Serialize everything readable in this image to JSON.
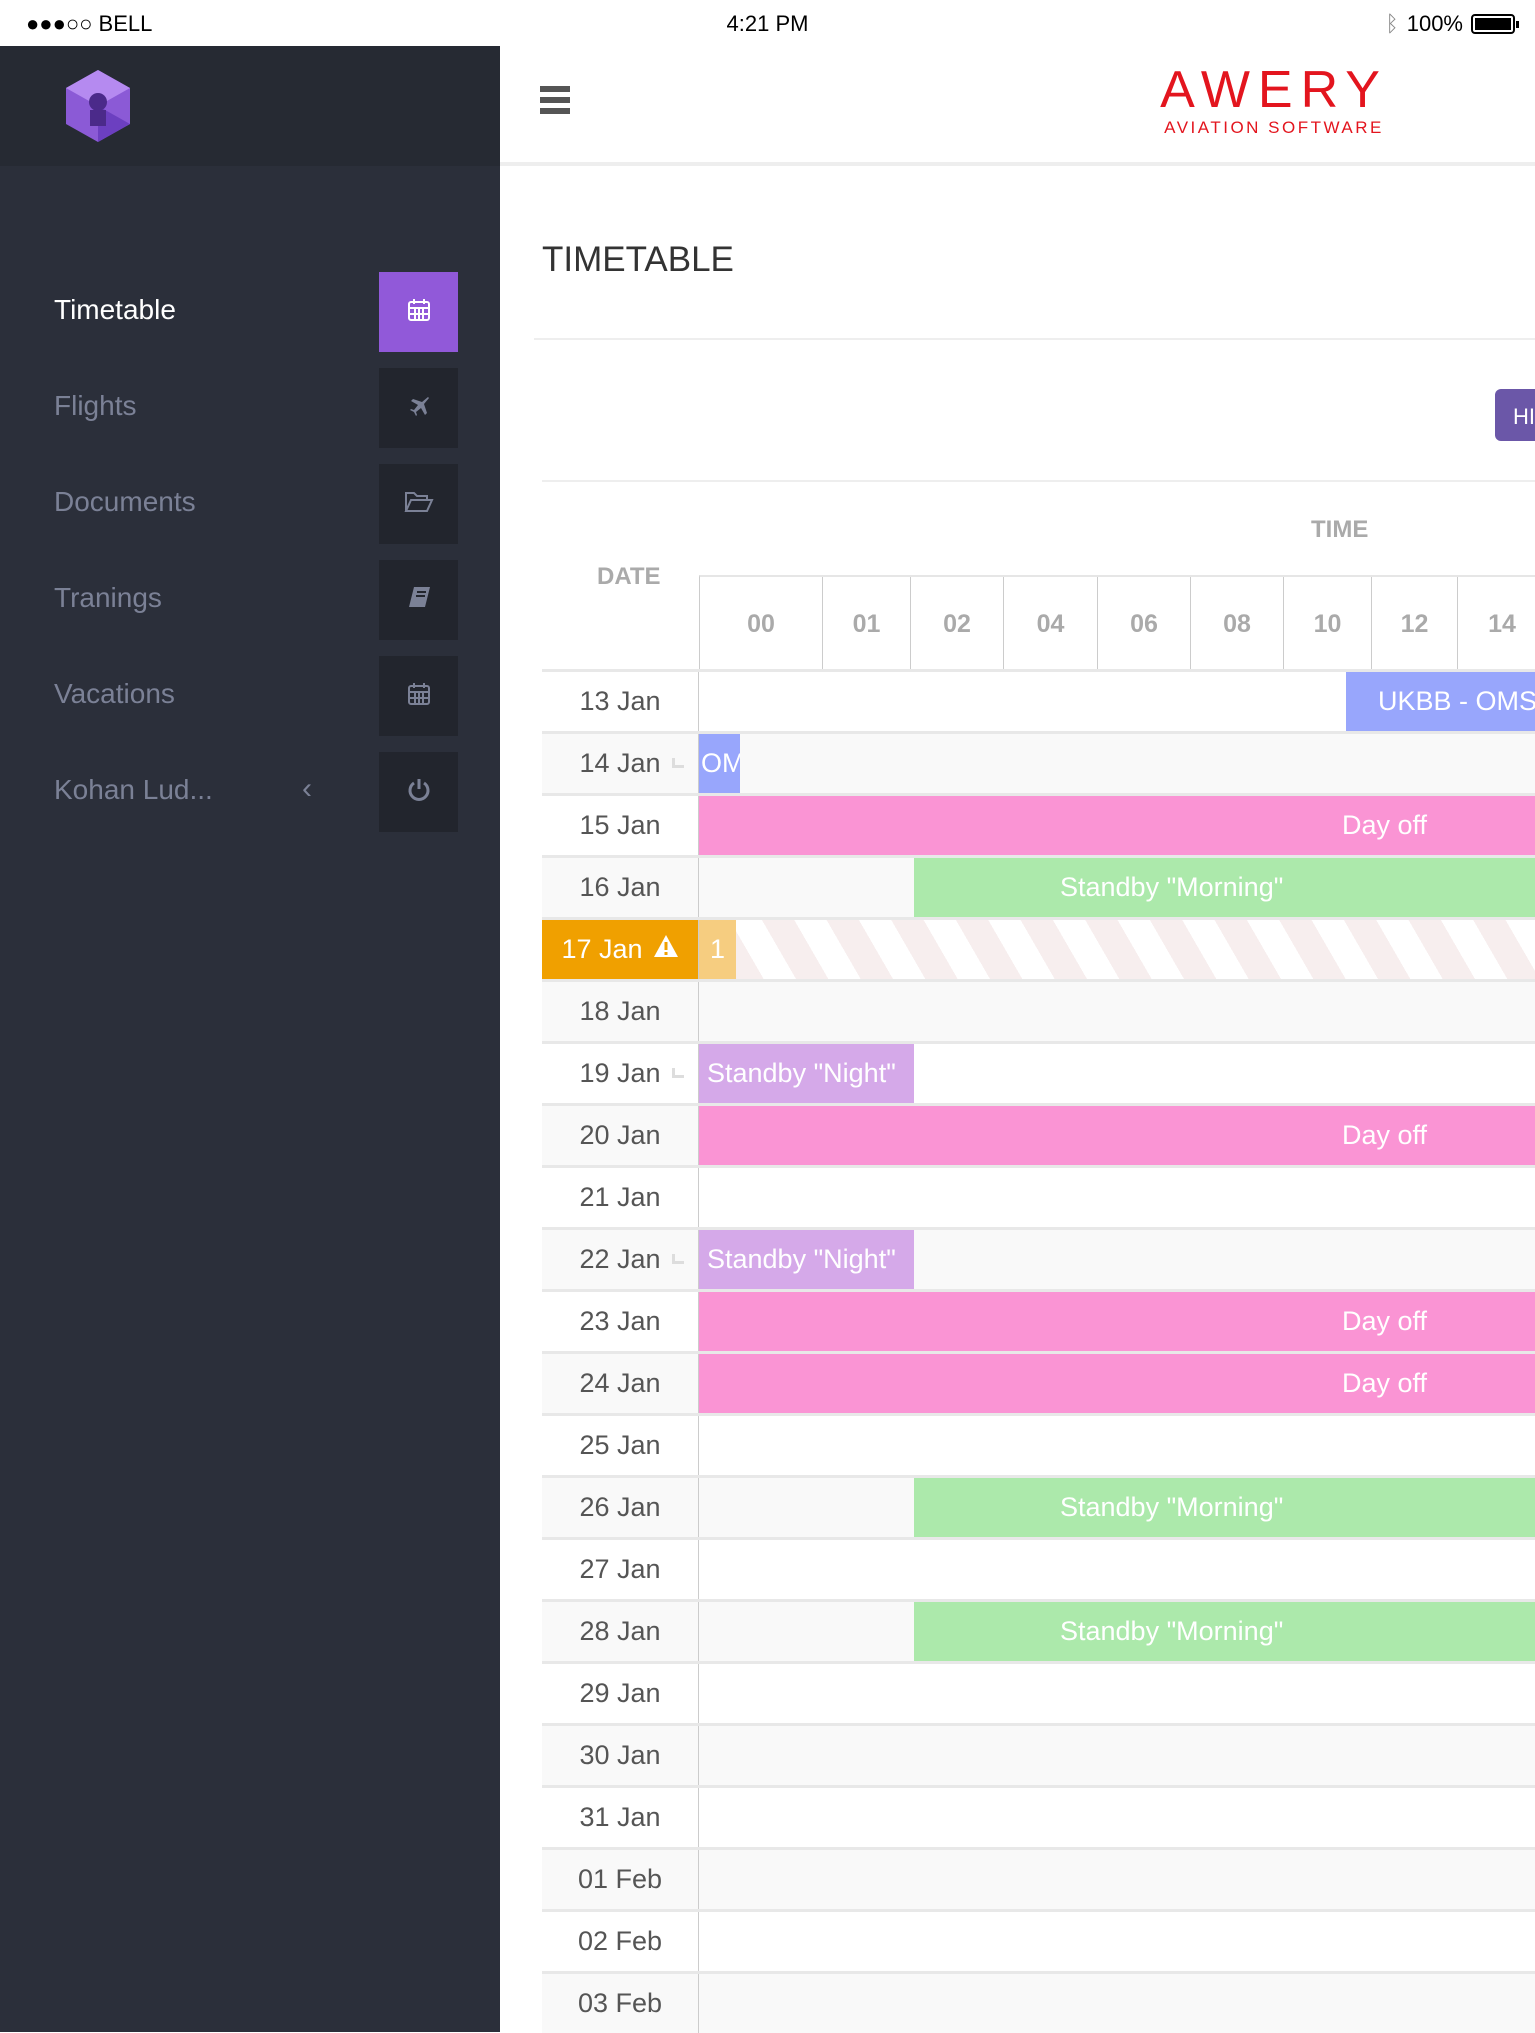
{
  "status_bar": {
    "carrier": "●●●○○ BELL",
    "time": "4:21 PM",
    "battery": "100%"
  },
  "brand": {
    "name": "AWERY",
    "tagline": "AVIATION SOFTWARE",
    "color": "#e3151e"
  },
  "sidebar": {
    "items": [
      {
        "label": "Timetable",
        "icon": "calendar-icon",
        "active": true
      },
      {
        "label": "Flights",
        "icon": "plane-icon"
      },
      {
        "label": "Documents",
        "icon": "folder-open-icon"
      },
      {
        "label": "Tranings",
        "icon": "book-icon"
      },
      {
        "label": "Vacations",
        "icon": "calendar-icon"
      },
      {
        "label": "Kohan Lud...",
        "icon": "power-icon"
      }
    ],
    "accent": "#9159d9"
  },
  "page": {
    "title": "TIMETABLE",
    "button_label": "HI"
  },
  "timetable": {
    "date_header": "DATE",
    "time_header": "TIME",
    "hours": [
      "00",
      "01",
      "02",
      "04",
      "06",
      "08",
      "10",
      "12",
      "14"
    ],
    "rows": [
      {
        "date": "13 Jan",
        "event": {
          "label": "UKBB - OMS",
          "kind": "flight"
        }
      },
      {
        "date": "14 Jan",
        "connector": true,
        "event": {
          "label": "OM",
          "kind": "flight-short"
        }
      },
      {
        "date": "15 Jan",
        "event": {
          "label": "Day off",
          "kind": "dayoff"
        }
      },
      {
        "date": "16 Jan",
        "event": {
          "label": "Standby \"Morning\"",
          "kind": "morning"
        }
      },
      {
        "date": "17 Jan",
        "warning": true,
        "count": "1"
      },
      {
        "date": "18 Jan"
      },
      {
        "date": "19 Jan",
        "connector": true,
        "event": {
          "label": "Standby \"Night\"",
          "kind": "night"
        }
      },
      {
        "date": "20 Jan",
        "event": {
          "label": "Day off",
          "kind": "dayoff"
        }
      },
      {
        "date": "21 Jan"
      },
      {
        "date": "22 Jan",
        "connector": true,
        "event": {
          "label": "Standby \"Night\"",
          "kind": "night"
        }
      },
      {
        "date": "23 Jan",
        "event": {
          "label": "Day off",
          "kind": "dayoff"
        }
      },
      {
        "date": "24 Jan",
        "event": {
          "label": "Day off",
          "kind": "dayoff"
        }
      },
      {
        "date": "25 Jan"
      },
      {
        "date": "26 Jan",
        "event": {
          "label": "Standby \"Morning\"",
          "kind": "morning"
        }
      },
      {
        "date": "27 Jan"
      },
      {
        "date": "28 Jan",
        "event": {
          "label": "Standby \"Morning\"",
          "kind": "morning"
        }
      },
      {
        "date": "29 Jan"
      },
      {
        "date": "30 Jan"
      },
      {
        "date": "31 Jan"
      },
      {
        "date": "01 Feb"
      },
      {
        "date": "02 Feb"
      },
      {
        "date": "03 Feb"
      }
    ]
  }
}
